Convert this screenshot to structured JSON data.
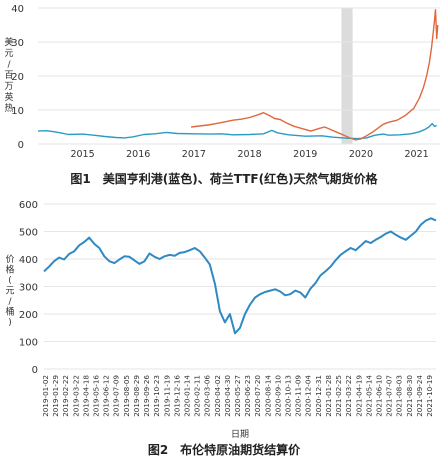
{
  "chart_data": [
    {
      "type": "line",
      "caption": "图1　美国亨利港(蓝色)、荷兰TTF(红色)天然气期货价格",
      "ylabel": "美元/百万英热",
      "x_ticks": [
        "2015",
        "2016",
        "2017",
        "2018",
        "2019",
        "2020",
        "2021"
      ],
      "y_ticks": [
        "0",
        "10",
        "20",
        "30",
        "40"
      ],
      "ylim": [
        0,
        40
      ],
      "xlim": [
        2014.7,
        2021.92
      ],
      "shaded_region": [
        2020.15,
        2020.35
      ],
      "grid": "horizontal",
      "series": [
        {
          "color": "#2a9bc4",
          "points": [
            [
              2014.7,
              3.8
            ],
            [
              2014.85,
              3.9
            ],
            [
              2015.0,
              3.6
            ],
            [
              2015.1,
              3.3
            ],
            [
              2015.25,
              2.8
            ],
            [
              2015.5,
              2.9
            ],
            [
              2015.7,
              2.6
            ],
            [
              2015.9,
              2.2
            ],
            [
              2016.1,
              1.9
            ],
            [
              2016.25,
              1.8
            ],
            [
              2016.4,
              2.1
            ],
            [
              2016.6,
              2.8
            ],
            [
              2016.8,
              3.0
            ],
            [
              2017.0,
              3.4
            ],
            [
              2017.2,
              3.1
            ],
            [
              2017.5,
              3.0
            ],
            [
              2017.8,
              2.9
            ],
            [
              2018.0,
              3.0
            ],
            [
              2018.2,
              2.7
            ],
            [
              2018.5,
              2.8
            ],
            [
              2018.75,
              3.0
            ],
            [
              2018.9,
              4.0
            ],
            [
              2019.0,
              3.3
            ],
            [
              2019.2,
              2.7
            ],
            [
              2019.5,
              2.3
            ],
            [
              2019.8,
              2.4
            ],
            [
              2020.0,
              2.0
            ],
            [
              2020.25,
              1.7
            ],
            [
              2020.45,
              1.6
            ],
            [
              2020.6,
              1.8
            ],
            [
              2020.75,
              2.6
            ],
            [
              2020.9,
              2.9
            ],
            [
              2021.0,
              2.6
            ],
            [
              2021.2,
              2.7
            ],
            [
              2021.4,
              3.0
            ],
            [
              2021.55,
              3.6
            ],
            [
              2021.65,
              4.3
            ],
            [
              2021.72,
              5.0
            ],
            [
              2021.78,
              6.0
            ],
            [
              2021.82,
              5.2
            ],
            [
              2021.86,
              5.4
            ]
          ]
        },
        {
          "color": "#e0683c",
          "points": [
            [
              2017.45,
              5.0
            ],
            [
              2017.6,
              5.3
            ],
            [
              2017.75,
              5.6
            ],
            [
              2017.9,
              6.0
            ],
            [
              2018.05,
              6.5
            ],
            [
              2018.2,
              7.0
            ],
            [
              2018.35,
              7.3
            ],
            [
              2018.5,
              7.8
            ],
            [
              2018.65,
              8.6
            ],
            [
              2018.75,
              9.2
            ],
            [
              2018.85,
              8.4
            ],
            [
              2018.95,
              7.5
            ],
            [
              2019.05,
              7.2
            ],
            [
              2019.15,
              6.3
            ],
            [
              2019.3,
              5.2
            ],
            [
              2019.45,
              4.5
            ],
            [
              2019.6,
              3.8
            ],
            [
              2019.75,
              4.6
            ],
            [
              2019.85,
              5.0
            ],
            [
              2019.95,
              4.3
            ],
            [
              2020.05,
              3.6
            ],
            [
              2020.15,
              2.9
            ],
            [
              2020.3,
              1.8
            ],
            [
              2020.4,
              1.2
            ],
            [
              2020.5,
              1.5
            ],
            [
              2020.6,
              2.4
            ],
            [
              2020.7,
              3.4
            ],
            [
              2020.8,
              4.6
            ],
            [
              2020.9,
              5.8
            ],
            [
              2021.0,
              6.4
            ],
            [
              2021.15,
              7.0
            ],
            [
              2021.3,
              8.4
            ],
            [
              2021.45,
              10.5
            ],
            [
              2021.55,
              13.5
            ],
            [
              2021.62,
              16.5
            ],
            [
              2021.68,
              20.0
            ],
            [
              2021.73,
              24.0
            ],
            [
              2021.77,
              28.5
            ],
            [
              2021.8,
              33.0
            ],
            [
              2021.82,
              36.0
            ],
            [
              2021.84,
              39.5
            ],
            [
              2021.86,
              31.0
            ],
            [
              2021.88,
              35.0
            ]
          ]
        }
      ]
    },
    {
      "type": "line",
      "caption": "图2　布伦特原油期货结算价",
      "ylabel": "价格(元/桶)",
      "xlabel": "日期",
      "y_ticks": [
        "0",
        "100",
        "200",
        "300",
        "400",
        "500",
        "600"
      ],
      "ylim": [
        0,
        600
      ],
      "grid": "horizontal",
      "x_ticks": [
        "2019-01-02",
        "2019-01-29",
        "2019-02-22",
        "2019-03-22",
        "2019-04-18",
        "2019-05-16",
        "2019-06-12",
        "2019-07-09",
        "2019-08-05",
        "2019-08-29",
        "2019-09-26",
        "2019-10-23",
        "2019-11-19",
        "2019-12-16",
        "2020-01-14",
        "2020-02-11",
        "2020-03-06",
        "2020-04-02",
        "2020-04-30",
        "2020-05-27",
        "2020-06-23",
        "2020-07-20",
        "2020-08-14",
        "2020-09-10",
        "2020-10-13",
        "2020-11-09",
        "2020-12-04",
        "2020-12-31",
        "2021-01-28",
        "2021-02-25",
        "2021-03-22",
        "2021-04-19",
        "2021-05-14",
        "2021-06-10",
        "2021-07-07",
        "2021-08-03",
        "2021-08-30",
        "2021-09-24",
        "2021-10-19"
      ],
      "series": [
        {
          "color": "#2e89c4",
          "values": [
            355,
            372,
            392,
            405,
            398,
            418,
            428,
            450,
            462,
            478,
            455,
            440,
            410,
            392,
            385,
            398,
            410,
            408,
            395,
            382,
            392,
            420,
            408,
            400,
            410,
            415,
            412,
            422,
            425,
            432,
            440,
            428,
            405,
            380,
            310,
            210,
            170,
            200,
            130,
            150,
            200,
            235,
            260,
            272,
            280,
            285,
            290,
            282,
            268,
            272,
            285,
            278,
            260,
            292,
            312,
            340,
            355,
            372,
            395,
            415,
            428,
            440,
            432,
            448,
            465,
            458,
            470,
            480,
            492,
            500,
            488,
            478,
            470,
            485,
            500,
            525,
            540,
            548,
            540
          ]
        }
      ]
    }
  ]
}
